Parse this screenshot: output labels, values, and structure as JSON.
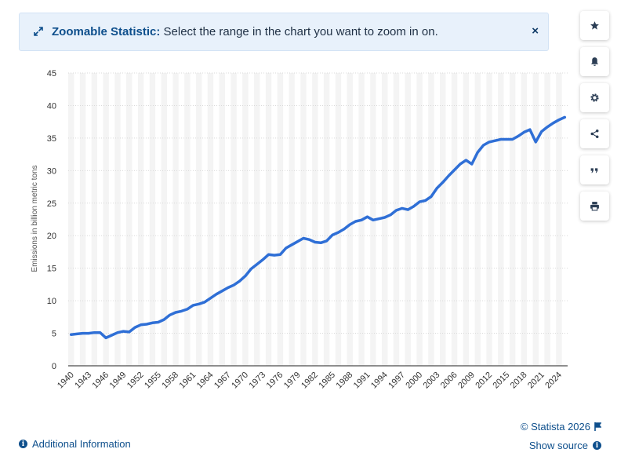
{
  "banner": {
    "title": "Zoomable Statistic:",
    "message": "Select the range in the chart you want to zoom in on.",
    "close_label": "×"
  },
  "sidebar": {
    "items": [
      {
        "name": "favorite-button",
        "icon": "star-icon"
      },
      {
        "name": "notification-button",
        "icon": "bell-icon"
      },
      {
        "name": "settings-button",
        "icon": "gear-icon"
      },
      {
        "name": "share-button",
        "icon": "share-icon"
      },
      {
        "name": "cite-button",
        "icon": "quote-icon"
      },
      {
        "name": "print-button",
        "icon": "print-icon"
      }
    ]
  },
  "footer": {
    "additional_info": "Additional Information",
    "copyright": "© Statista 2026",
    "show_source": "Show source"
  },
  "colors": {
    "line": "#2f6fd6",
    "accent": "#0e4f8c",
    "banner_bg": "#e8f1fb"
  },
  "chart_data": {
    "type": "line",
    "ylabel": "Emissions in billion metric tons",
    "ylim": [
      0,
      45
    ],
    "yticks": [
      0,
      5,
      10,
      15,
      20,
      25,
      30,
      35,
      40,
      45
    ],
    "xticks": [
      "1940",
      "1943",
      "1946",
      "1949",
      "1952",
      "1955",
      "1958",
      "1961",
      "1964",
      "1967",
      "1970",
      "1973",
      "1976",
      "1979",
      "1982",
      "1985",
      "1988",
      "1991",
      "1994",
      "1997",
      "2000",
      "2003",
      "2006",
      "2009",
      "2012",
      "2015",
      "2018",
      "2021",
      "2024"
    ],
    "grid": true,
    "series": [
      {
        "x": [
          1940,
          1941,
          1942,
          1943,
          1944,
          1945,
          1946,
          1947,
          1948,
          1949,
          1950,
          1951,
          1952,
          1953,
          1954,
          1955,
          1956,
          1957,
          1958,
          1959,
          1960,
          1961,
          1962,
          1963,
          1964,
          1965,
          1966,
          1967,
          1968,
          1969,
          1970,
          1971,
          1972,
          1973,
          1974,
          1975,
          1976,
          1977,
          1978,
          1979,
          1980,
          1981,
          1982,
          1983,
          1984,
          1985,
          1986,
          1987,
          1988,
          1989,
          1990,
          1991,
          1992,
          1993,
          1994,
          1995,
          1996,
          1997,
          1998,
          1999,
          2000,
          2001,
          2002,
          2003,
          2004,
          2005,
          2006,
          2007,
          2008,
          2009,
          2010,
          2011,
          2012,
          2013,
          2014,
          2015,
          2016,
          2017,
          2018,
          2019,
          2020,
          2021,
          2022,
          2023,
          2024,
          2025
        ],
        "values": [
          4.8,
          4.9,
          5.0,
          5.0,
          5.1,
          5.1,
          4.3,
          4.7,
          5.1,
          5.3,
          5.2,
          5.9,
          6.3,
          6.4,
          6.6,
          6.7,
          7.1,
          7.8,
          8.2,
          8.4,
          8.7,
          9.3,
          9.5,
          9.8,
          10.4,
          11.0,
          11.5,
          12.0,
          12.4,
          13.0,
          13.8,
          14.9,
          15.6,
          16.3,
          17.1,
          17.0,
          17.1,
          18.1,
          18.6,
          19.1,
          19.6,
          19.4,
          19.0,
          18.9,
          19.2,
          20.1,
          20.5,
          21.0,
          21.7,
          22.2,
          22.4,
          22.9,
          22.4,
          22.6,
          22.8,
          23.2,
          23.9,
          24.2,
          24.0,
          24.5,
          25.2,
          25.4,
          26.0,
          27.3,
          28.2,
          29.2,
          30.1,
          31.0,
          31.6,
          31.0,
          32.8,
          33.9,
          34.4,
          34.6,
          34.8,
          34.8,
          34.8,
          35.3,
          35.9,
          36.3,
          34.4,
          36.0,
          36.7,
          37.3,
          37.8,
          38.2
        ]
      }
    ]
  }
}
